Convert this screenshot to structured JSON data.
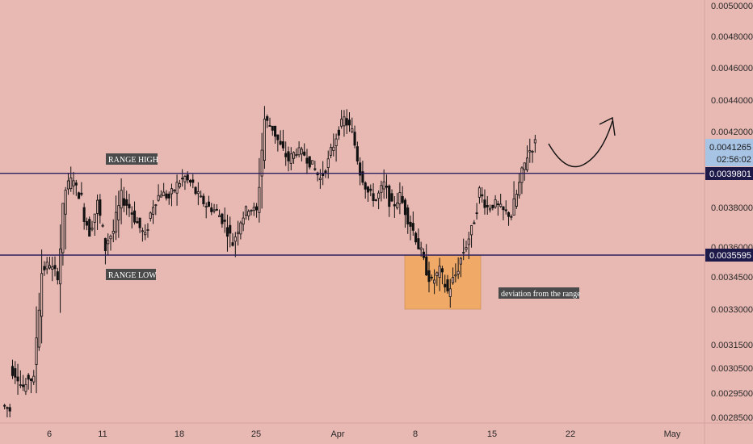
{
  "colors": {
    "background": "#e8b8b3",
    "candle": "#111111",
    "level_line": "#2b1f5e",
    "box_fill": "#f2a65a",
    "label_bg": "#4a4a4a",
    "current_tag_bg": "#a8c4e4",
    "current_tag_text": "#1a1a1a",
    "level_tag_bg": "#1d1a4a",
    "level_tag_text": "#ffffff",
    "arrow": "#111111"
  },
  "chart_data": {
    "type": "candlestick",
    "x_labels": [
      "6",
      "11",
      "18",
      "25",
      "Apr",
      "8",
      "15",
      "22",
      "May"
    ],
    "y_tick_labels": [
      "0.0050000",
      "0.0048000",
      "0.0046000",
      "0.0044000",
      "0.0042000",
      "0.0038000",
      "0.0036000",
      "0.0034500",
      "0.0033000",
      "0.0031500",
      "0.0030500",
      "0.0029500",
      "0.0028500"
    ],
    "levels": {
      "range_high": {
        "label": "RANGE HIGH",
        "value": 0.0039801,
        "tag": "0.0039801"
      },
      "range_low": {
        "label": "RANGE LOW",
        "value": 0.0035595,
        "tag": "0.0035595"
      }
    },
    "current_price": {
      "tag": "0.0041265",
      "countdown": "02:56:02",
      "value": 0.0041265
    },
    "annotation": {
      "text": "deviation from the range",
      "price_top": 0.0035595,
      "price_bottom": 0.0033
    },
    "ohlc_anchors": [
      [
        0.0029,
        0.00288
      ],
      [
        0.00305,
        0.00302
      ],
      [
        0.003,
        0.00296
      ],
      [
        0.00302,
        0.003
      ],
      [
        0.00305,
        0.00348
      ],
      [
        0.00348,
        0.00352
      ],
      [
        0.0035,
        0.00346
      ],
      [
        0.00346,
        0.0039
      ],
      [
        0.0039,
        0.00396
      ],
      [
        0.00392,
        0.00385
      ],
      [
        0.0038,
        0.00368
      ],
      [
        0.00368,
        0.00382
      ],
      [
        0.00382,
        0.0036
      ],
      [
        0.00362,
        0.00368
      ],
      [
        0.00368,
        0.00385
      ],
      [
        0.00385,
        0.0038
      ],
      [
        0.0038,
        0.00372
      ],
      [
        0.00372,
        0.00365
      ],
      [
        0.00366,
        0.00382
      ],
      [
        0.00382,
        0.00388
      ],
      [
        0.00388,
        0.00385
      ],
      [
        0.00385,
        0.00392
      ],
      [
        0.00392,
        0.00396
      ],
      [
        0.00395,
        0.00392
      ],
      [
        0.0039,
        0.00384
      ],
      [
        0.00384,
        0.0038
      ],
      [
        0.0038,
        0.00378
      ],
      [
        0.00378,
        0.00372
      ],
      [
        0.00372,
        0.00362
      ],
      [
        0.00362,
        0.00374
      ],
      [
        0.00374,
        0.0038
      ],
      [
        0.0038,
        0.00378
      ],
      [
        0.00378,
        0.00428
      ],
      [
        0.00428,
        0.00422
      ],
      [
        0.00422,
        0.00412
      ],
      [
        0.00412,
        0.00405
      ],
      [
        0.00405,
        0.0041
      ],
      [
        0.0041,
        0.00408
      ],
      [
        0.00408,
        0.00402
      ],
      [
        0.00402,
        0.00395
      ],
      [
        0.00395,
        0.00404
      ],
      [
        0.00404,
        0.00418
      ],
      [
        0.00418,
        0.00428
      ],
      [
        0.00428,
        0.0042
      ],
      [
        0.0042,
        0.004
      ],
      [
        0.004,
        0.00388
      ],
      [
        0.00388,
        0.00384
      ],
      [
        0.00384,
        0.00392
      ],
      [
        0.00392,
        0.0038
      ],
      [
        0.0038,
        0.00386
      ],
      [
        0.00386,
        0.00375
      ],
      [
        0.00375,
        0.00365
      ],
      [
        0.00365,
        0.00352
      ],
      [
        0.00352,
        0.00342
      ],
      [
        0.00342,
        0.00348
      ],
      [
        0.00348,
        0.00338
      ],
      [
        0.00338,
        0.00346
      ],
      [
        0.00346,
        0.00358
      ],
      [
        0.00358,
        0.00368
      ],
      [
        0.00368,
        0.00388
      ],
      [
        0.00388,
        0.0038
      ],
      [
        0.0038,
        0.00382
      ],
      [
        0.00382,
        0.00378
      ],
      [
        0.00378,
        0.00376
      ],
      [
        0.00376,
        0.00392
      ],
      [
        0.00392,
        0.00408
      ],
      [
        0.00408,
        0.00414
      ]
    ]
  }
}
